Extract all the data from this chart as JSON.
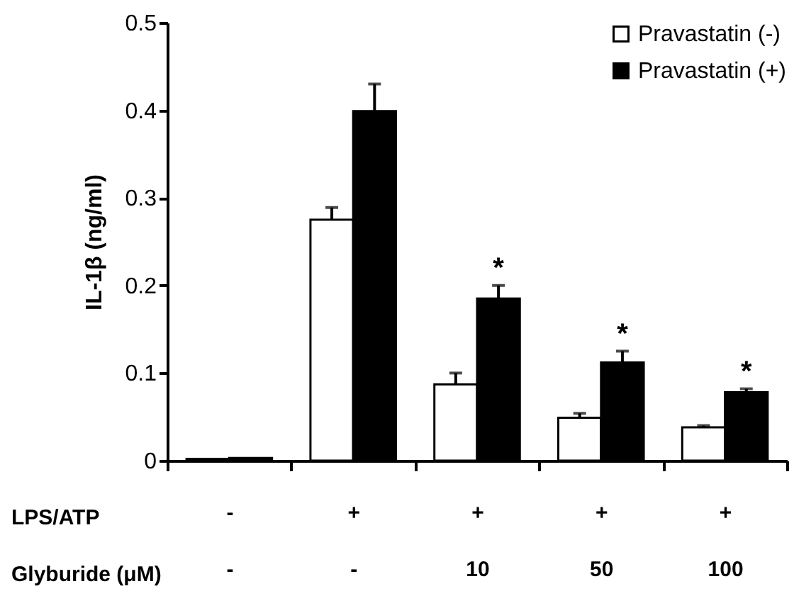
{
  "chart_data": {
    "type": "bar",
    "ylabel": "IL-1β (ng/ml)",
    "categories": [
      "-\n-",
      "+\n-",
      "+\n10",
      "+\n50",
      "+\n100"
    ],
    "series": [
      {
        "name": "Pravastatin (-)",
        "color": "#ffffff",
        "values": [
          0.002,
          0.275,
          0.087,
          0.049,
          0.038
        ],
        "errors": [
          null,
          0.014,
          0.013,
          0.005,
          0.002
        ]
      },
      {
        "name": "Pravastatin (+)",
        "color": "#000000",
        "values": [
          0.003,
          0.399,
          0.185,
          0.112,
          0.078
        ],
        "errors": [
          null,
          0.031,
          0.015,
          0.013,
          0.004
        ]
      }
    ],
    "ylim": [
      0,
      0.5
    ],
    "yticks": [
      0,
      0.1,
      0.2,
      0.3,
      0.4,
      0.5
    ],
    "grid": false,
    "legend": "top right",
    "annotations": [
      "LPS/ATP",
      "Glyburide (μM)",
      {
        "text": "*",
        "x": "+\n10",
        "y": 0.185
      },
      {
        "text": "*",
        "x": "+\n50",
        "y": 0.112
      },
      {
        "text": "*",
        "x": "+\n100",
        "y": 0.078
      }
    ]
  }
}
